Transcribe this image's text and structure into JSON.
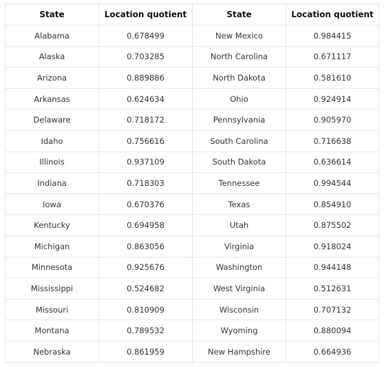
{
  "table": {
    "headers": [
      "State",
      "Location quotient",
      "State",
      "Location quotient"
    ],
    "rows": [
      [
        "Alabama",
        "0.678499",
        "New Mexico",
        "0.984415"
      ],
      [
        "Alaska",
        "0.703285",
        "North Carolina",
        "0.671117"
      ],
      [
        "Arizona",
        "0.889886",
        "North Dakota",
        "0.581610"
      ],
      [
        "Arkansas",
        "0.624634",
        "Ohio",
        "0.924914"
      ],
      [
        "Delaware",
        "0.718172",
        "Pennsylvania",
        "0.905970"
      ],
      [
        "Idaho",
        "0.756616",
        "South Carolina",
        "0.716638"
      ],
      [
        "Illinois",
        "0.937109",
        "South Dakota",
        "0.636614"
      ],
      [
        "Indiana",
        "0.718303",
        "Tennessee",
        "0.994544"
      ],
      [
        "Iowa",
        "0.670376",
        "Texas",
        "0.854910"
      ],
      [
        "Kentucky",
        "0.694958",
        "Utah",
        "0.875502"
      ],
      [
        "Michigan",
        "0.863056",
        "Virginia",
        "0.918024"
      ],
      [
        "Minnesota",
        "0.925676",
        "Washington",
        "0.944148"
      ],
      [
        "Mississippi",
        "0.524682",
        "West Virginia",
        "0.512631"
      ],
      [
        "Missouri",
        "0.810909",
        "Wisconsin",
        "0.707132"
      ],
      [
        "Montana",
        "0.789532",
        "Wyoming",
        "0.880094"
      ],
      [
        "Nebraska",
        "0.861959",
        "New Hampshire",
        "0.664936"
      ]
    ]
  }
}
